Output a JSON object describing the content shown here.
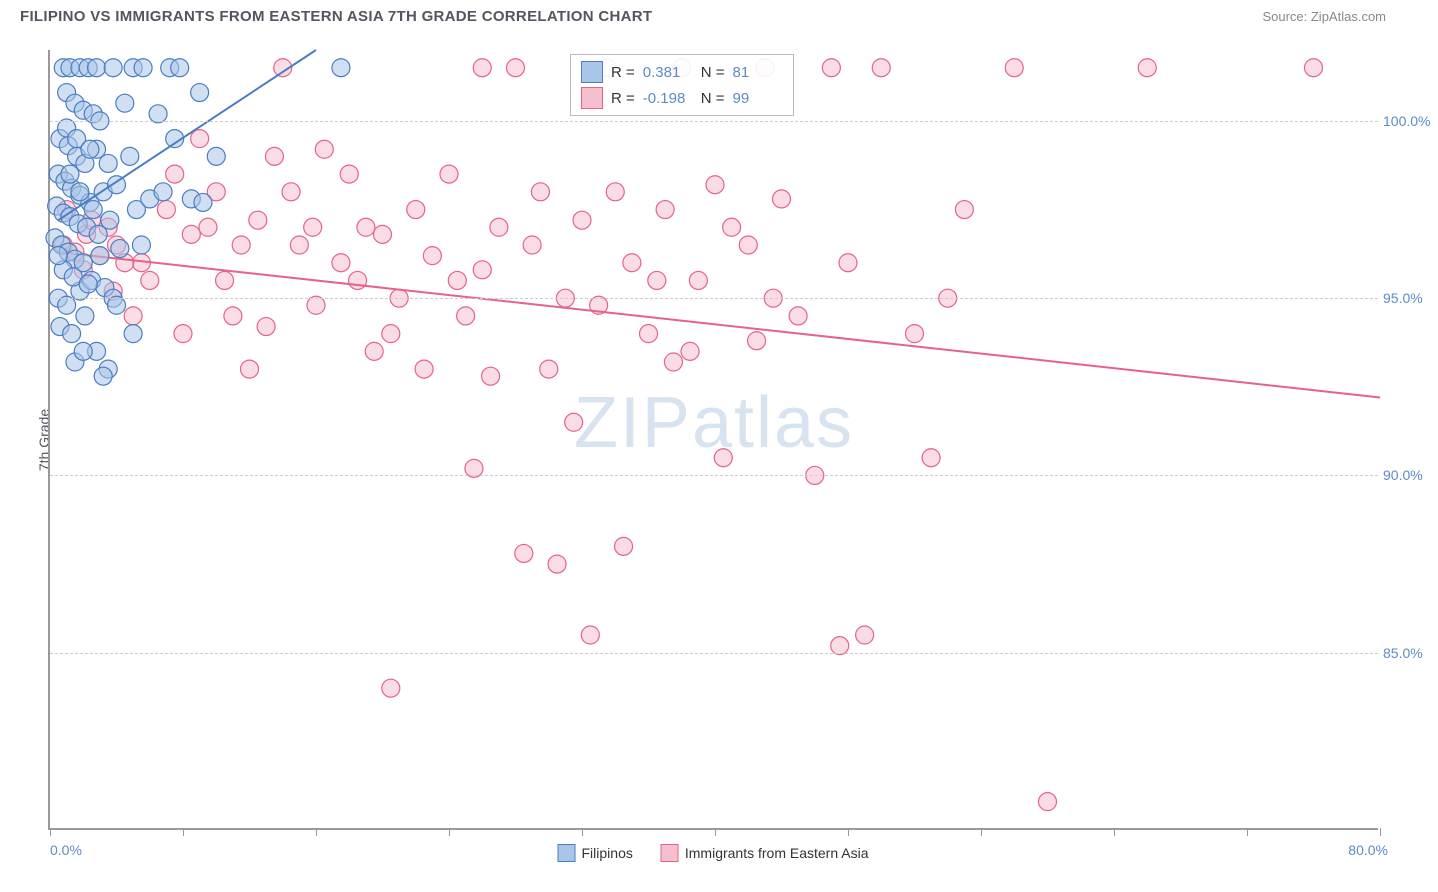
{
  "title": "FILIPINO VS IMMIGRANTS FROM EASTERN ASIA 7TH GRADE CORRELATION CHART",
  "source": "Source: ZipAtlas.com",
  "watermark_part1": "ZIP",
  "watermark_part2": "atlas",
  "chart": {
    "type": "scatter",
    "y_axis_title": "7th Grade",
    "xlim": [
      0,
      80
    ],
    "ylim": [
      80,
      102
    ],
    "x_ticks": [
      0,
      8,
      16,
      24,
      32,
      40,
      48,
      56,
      64,
      72,
      80
    ],
    "x_label_min": "0.0%",
    "x_label_max": "80.0%",
    "y_gridlines": [
      85,
      90,
      95,
      100
    ],
    "y_tick_labels": [
      "85.0%",
      "90.0%",
      "95.0%",
      "100.0%"
    ],
    "background_color": "#ffffff",
    "grid_color": "#cccccc",
    "axis_color": "#999999",
    "marker_radius": 9,
    "marker_stroke_width": 1.2,
    "line_width": 2,
    "series": {
      "filipinos": {
        "label": "Filipinos",
        "fill": "#a9c5e8",
        "stroke": "#4a7ec2",
        "fill_opacity": 0.55,
        "R": "0.381",
        "N": "81",
        "trend_line": {
          "x1": 0.5,
          "y1": 97.2,
          "x2": 16,
          "y2": 102
        },
        "points": [
          [
            0.8,
            101.5
          ],
          [
            1.2,
            101.5
          ],
          [
            1.8,
            101.5
          ],
          [
            2.3,
            101.5
          ],
          [
            2.8,
            101.5
          ],
          [
            3.8,
            101.5
          ],
          [
            5.0,
            101.5
          ],
          [
            5.6,
            101.5
          ],
          [
            7.2,
            101.5
          ],
          [
            7.8,
            101.5
          ],
          [
            9.0,
            100.8
          ],
          [
            1.0,
            100.8
          ],
          [
            1.5,
            100.5
          ],
          [
            2.0,
            100.3
          ],
          [
            2.6,
            100.2
          ],
          [
            3.0,
            100.0
          ],
          [
            4.5,
            100.5
          ],
          [
            0.6,
            99.5
          ],
          [
            1.1,
            99.3
          ],
          [
            1.6,
            99.0
          ],
          [
            2.1,
            98.8
          ],
          [
            2.8,
            99.2
          ],
          [
            3.5,
            98.8
          ],
          [
            0.5,
            98.5
          ],
          [
            0.9,
            98.3
          ],
          [
            1.3,
            98.1
          ],
          [
            1.8,
            97.9
          ],
          [
            2.4,
            97.7
          ],
          [
            3.2,
            98.0
          ],
          [
            4.0,
            98.2
          ],
          [
            0.4,
            97.6
          ],
          [
            0.8,
            97.4
          ],
          [
            1.2,
            97.3
          ],
          [
            1.7,
            97.1
          ],
          [
            2.2,
            97.0
          ],
          [
            2.9,
            96.8
          ],
          [
            3.6,
            97.2
          ],
          [
            5.2,
            97.5
          ],
          [
            6.0,
            97.8
          ],
          [
            6.8,
            98.0
          ],
          [
            8.5,
            97.8
          ],
          [
            9.2,
            97.7
          ],
          [
            0.3,
            96.7
          ],
          [
            0.7,
            96.5
          ],
          [
            1.1,
            96.3
          ],
          [
            1.5,
            96.1
          ],
          [
            2.0,
            96.0
          ],
          [
            3.0,
            96.2
          ],
          [
            4.2,
            96.4
          ],
          [
            5.5,
            96.5
          ],
          [
            0.5,
            95.0
          ],
          [
            1.0,
            94.8
          ],
          [
            1.8,
            95.2
          ],
          [
            2.5,
            95.5
          ],
          [
            3.3,
            95.3
          ],
          [
            0.6,
            94.2
          ],
          [
            1.3,
            94.0
          ],
          [
            2.1,
            94.5
          ],
          [
            1.5,
            93.2
          ],
          [
            2.8,
            93.5
          ],
          [
            3.5,
            93.0
          ],
          [
            0.8,
            95.8
          ],
          [
            1.4,
            95.6
          ],
          [
            2.3,
            95.4
          ],
          [
            3.8,
            95.0
          ],
          [
            1.0,
            99.8
          ],
          [
            1.6,
            99.5
          ],
          [
            2.4,
            99.2
          ],
          [
            4.8,
            99.0
          ],
          [
            17.5,
            101.5
          ],
          [
            6.5,
            100.2
          ],
          [
            7.5,
            99.5
          ],
          [
            10.0,
            99.0
          ],
          [
            4.0,
            94.8
          ],
          [
            5.0,
            94.0
          ],
          [
            2.0,
            93.5
          ],
          [
            3.2,
            92.8
          ],
          [
            1.2,
            98.5
          ],
          [
            1.8,
            98.0
          ],
          [
            2.6,
            97.5
          ],
          [
            0.5,
            96.2
          ]
        ]
      },
      "immigrants": {
        "label": "Immigrants from Eastern Asia",
        "fill": "#f5c0cd",
        "stroke": "#e6628a",
        "fill_opacity": 0.55,
        "R": "-0.198",
        "N": "99",
        "trend_line": {
          "x1": 0.5,
          "y1": 96.3,
          "x2": 80,
          "y2": 92.2
        },
        "points": [
          [
            0.8,
            96.5
          ],
          [
            1.5,
            96.3
          ],
          [
            2.2,
            96.8
          ],
          [
            3.0,
            96.2
          ],
          [
            4.0,
            96.5
          ],
          [
            5.5,
            96.0
          ],
          [
            7.0,
            97.5
          ],
          [
            8.5,
            96.8
          ],
          [
            9.5,
            97.0
          ],
          [
            10.5,
            95.5
          ],
          [
            11.5,
            96.5
          ],
          [
            12.5,
            97.2
          ],
          [
            13.5,
            99.0
          ],
          [
            14.5,
            98.0
          ],
          [
            15.0,
            96.5
          ],
          [
            15.8,
            97.0
          ],
          [
            16.5,
            99.2
          ],
          [
            17.5,
            96.0
          ],
          [
            18.5,
            95.5
          ],
          [
            19.0,
            97.0
          ],
          [
            20.0,
            96.8
          ],
          [
            21.0,
            95.0
          ],
          [
            22.0,
            97.5
          ],
          [
            23.0,
            96.2
          ],
          [
            24.0,
            98.5
          ],
          [
            25.0,
            94.5
          ],
          [
            26.0,
            95.8
          ],
          [
            27.0,
            97.0
          ],
          [
            28.0,
            101.5
          ],
          [
            29.0,
            96.5
          ],
          [
            30.0,
            93.0
          ],
          [
            31.0,
            95.0
          ],
          [
            32.0,
            97.2
          ],
          [
            33.0,
            94.8
          ],
          [
            34.0,
            98.0
          ],
          [
            35.0,
            96.0
          ],
          [
            36.0,
            94.0
          ],
          [
            37.0,
            97.5
          ],
          [
            38.0,
            101.5
          ],
          [
            39.0,
            95.5
          ],
          [
            40.0,
            98.2
          ],
          [
            42.0,
            96.5
          ],
          [
            44.0,
            97.8
          ],
          [
            45.0,
            94.5
          ],
          [
            47.0,
            101.5
          ],
          [
            49.0,
            85.5
          ],
          [
            8.0,
            94.0
          ],
          [
            13.0,
            94.2
          ],
          [
            19.5,
            93.5
          ],
          [
            26.5,
            92.8
          ],
          [
            31.5,
            91.5
          ],
          [
            37.5,
            93.2
          ],
          [
            20.5,
            84.0
          ],
          [
            25.5,
            90.2
          ],
          [
            28.5,
            87.8
          ],
          [
            30.5,
            87.5
          ],
          [
            32.5,
            85.5
          ],
          [
            34.5,
            88.0
          ],
          [
            40.5,
            90.5
          ],
          [
            42.5,
            93.8
          ],
          [
            43.5,
            95.0
          ],
          [
            46.0,
            90.0
          ],
          [
            47.5,
            85.2
          ],
          [
            50.0,
            101.5
          ],
          [
            54.0,
            95.0
          ],
          [
            55.0,
            97.5
          ],
          [
            58.0,
            101.5
          ],
          [
            60.0,
            80.8
          ],
          [
            66.0,
            101.5
          ],
          [
            76.0,
            101.5
          ],
          [
            1.0,
            97.5
          ],
          [
            2.5,
            97.2
          ],
          [
            3.5,
            97.0
          ],
          [
            4.5,
            96.0
          ],
          [
            6.0,
            95.5
          ],
          [
            7.5,
            98.5
          ],
          [
            9.0,
            99.5
          ],
          [
            10.0,
            98.0
          ],
          [
            11.0,
            94.5
          ],
          [
            12.0,
            93.0
          ],
          [
            14.0,
            101.5
          ],
          [
            16.0,
            94.8
          ],
          [
            18.0,
            98.5
          ],
          [
            20.5,
            94.0
          ],
          [
            22.5,
            93.0
          ],
          [
            24.5,
            95.5
          ],
          [
            26.0,
            101.5
          ],
          [
            29.5,
            98.0
          ],
          [
            33.5,
            101.5
          ],
          [
            36.5,
            95.5
          ],
          [
            38.5,
            93.5
          ],
          [
            41.0,
            97.0
          ],
          [
            43.0,
            101.5
          ],
          [
            48.0,
            96.0
          ],
          [
            52.0,
            94.0
          ],
          [
            53.0,
            90.5
          ],
          [
            2.0,
            95.8
          ],
          [
            3.8,
            95.2
          ],
          [
            5.0,
            94.5
          ]
        ]
      }
    }
  },
  "stats_box": {
    "rows": [
      {
        "swatch_fill": "#a9c5e8",
        "swatch_border": "#4a7ec2",
        "R_label": "R =",
        "R_val": "0.381",
        "N_label": "N =",
        "N_val": "81"
      },
      {
        "swatch_fill": "#f5c0cd",
        "swatch_border": "#e6628a",
        "R_label": "R =",
        "R_val": "-0.198",
        "N_label": "N =",
        "N_val": "99"
      }
    ]
  },
  "bottom_legend": [
    {
      "swatch_fill": "#a9c5e8",
      "swatch_border": "#4a7ec2",
      "label": "Filipinos"
    },
    {
      "swatch_fill": "#f5c0cd",
      "swatch_border": "#e6628a",
      "label": "Immigrants from Eastern Asia"
    }
  ]
}
